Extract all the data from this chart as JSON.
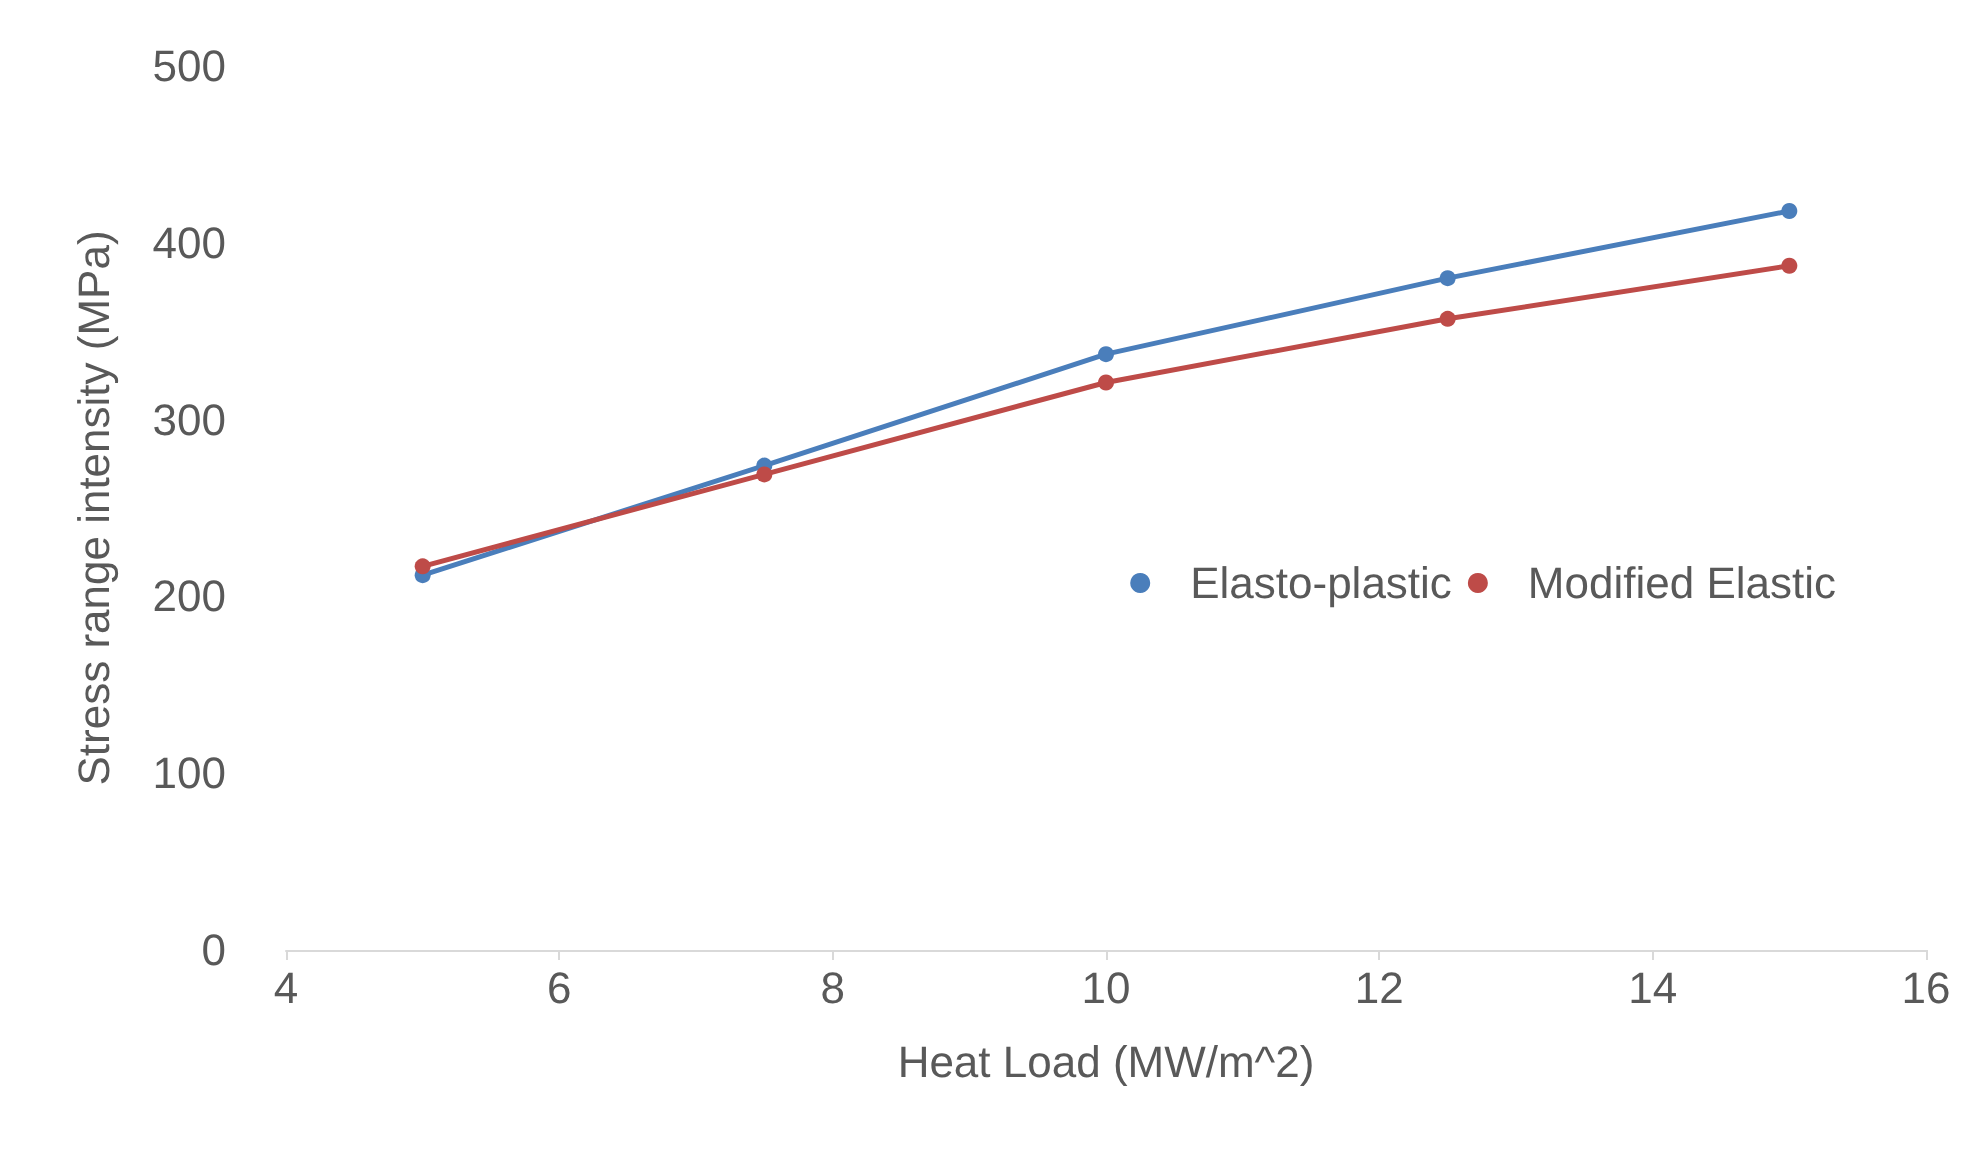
{
  "chart_data": {
    "type": "line",
    "xlabel": "Heat Load (MW/m^2)",
    "ylabel": "Stress range intensity (MPa)",
    "x": [
      5,
      7.5,
      10,
      12.5,
      15
    ],
    "series": [
      {
        "name": "Elasto-plastic",
        "color": "#4a7ebb",
        "values": [
          212,
          274,
          337,
          380,
          418
        ]
      },
      {
        "name": "Modified Elastic",
        "color": "#be4b48",
        "values": [
          217,
          269,
          321,
          357,
          387
        ]
      }
    ],
    "xlim": [
      4,
      16
    ],
    "xticks": [
      4,
      6,
      8,
      10,
      12,
      14,
      16
    ],
    "ylim": [
      0,
      500
    ],
    "yticks": [
      0,
      100,
      200,
      300,
      400,
      500
    ],
    "grid": false,
    "legend": "right",
    "marker": "circle",
    "line_style": "solid"
  }
}
